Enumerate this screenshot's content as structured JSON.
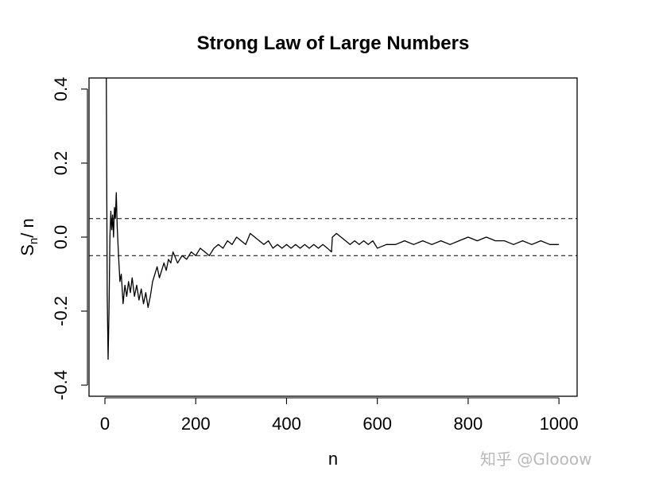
{
  "chart_data": {
    "type": "line",
    "title": "Strong Law of Large Numbers",
    "xlabel": "n",
    "ylabel": {
      "main": "S",
      "sub": "n",
      "rest": "/ n"
    },
    "xlim": [
      -35,
      1040
    ],
    "ylim": [
      -0.43,
      0.43
    ],
    "xticks": [
      0,
      200,
      400,
      600,
      800,
      1000
    ],
    "xtick_labels": [
      "0",
      "200",
      "400",
      "600",
      "800",
      "1000"
    ],
    "yticks": [
      -0.4,
      -0.2,
      0.0,
      0.2,
      0.4
    ],
    "ytick_labels": [
      "-0.4",
      "-0.2",
      "0.0",
      "0.2",
      "0.4"
    ],
    "hlines": [
      {
        "y": 0.05,
        "style": "dashed"
      },
      {
        "y": -0.05,
        "style": "dashed"
      }
    ],
    "grid": false,
    "series": [
      {
        "color": "#000000",
        "x": [
          1,
          3,
          5,
          7,
          9,
          11,
          13,
          15,
          17,
          19,
          21,
          23,
          25,
          27,
          30,
          33,
          36,
          40,
          44,
          48,
          52,
          56,
          60,
          65,
          70,
          75,
          80,
          85,
          90,
          95,
          100,
          105,
          110,
          115,
          120,
          125,
          130,
          135,
          140,
          145,
          150,
          160,
          170,
          180,
          190,
          200,
          210,
          220,
          230,
          240,
          250,
          260,
          270,
          280,
          290,
          300,
          310,
          320,
          330,
          340,
          350,
          360,
          370,
          380,
          390,
          400,
          410,
          420,
          430,
          440,
          450,
          460,
          470,
          480,
          490,
          499,
          501,
          510,
          520,
          530,
          540,
          550,
          560,
          570,
          580,
          590,
          600,
          620,
          640,
          660,
          680,
          700,
          720,
          740,
          760,
          780,
          800,
          820,
          840,
          860,
          880,
          900,
          920,
          940,
          960,
          980,
          1000
        ],
        "y": [
          1.0,
          0.45,
          -0.15,
          -0.33,
          -0.2,
          0.0,
          0.07,
          0.02,
          0.06,
          0.0,
          0.08,
          0.05,
          0.12,
          0.03,
          -0.05,
          -0.12,
          -0.1,
          -0.18,
          -0.13,
          -0.16,
          -0.12,
          -0.15,
          -0.11,
          -0.16,
          -0.13,
          -0.17,
          -0.14,
          -0.18,
          -0.15,
          -0.19,
          -0.16,
          -0.12,
          -0.1,
          -0.08,
          -0.11,
          -0.09,
          -0.07,
          -0.09,
          -0.06,
          -0.07,
          -0.04,
          -0.07,
          -0.05,
          -0.06,
          -0.04,
          -0.05,
          -0.03,
          -0.04,
          -0.05,
          -0.03,
          -0.02,
          -0.03,
          -0.01,
          -0.02,
          0.0,
          -0.01,
          -0.02,
          0.01,
          0.0,
          -0.01,
          -0.02,
          -0.01,
          -0.03,
          -0.02,
          -0.03,
          -0.02,
          -0.03,
          -0.02,
          -0.03,
          -0.02,
          -0.03,
          -0.02,
          -0.03,
          -0.02,
          -0.03,
          -0.04,
          0.0,
          0.01,
          0.0,
          -0.01,
          -0.02,
          -0.01,
          -0.02,
          -0.01,
          -0.02,
          -0.01,
          -0.03,
          -0.02,
          -0.02,
          -0.01,
          -0.02,
          -0.01,
          -0.02,
          -0.01,
          -0.02,
          -0.01,
          0.0,
          -0.01,
          0.0,
          -0.01,
          -0.01,
          -0.02,
          -0.01,
          -0.02,
          -0.01,
          -0.02,
          -0.02
        ]
      }
    ]
  },
  "watermark": "知乎 @Glooow"
}
